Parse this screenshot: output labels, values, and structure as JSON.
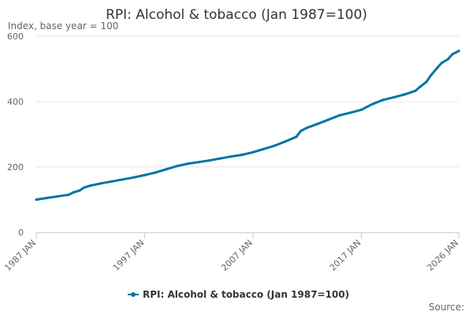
{
  "chart_data": {
    "type": "line",
    "title": "RPI: Alcohol & tobacco (Jan 1987=100)",
    "subtitle": "Index, base year = 100",
    "xlabel": "",
    "ylabel": "",
    "ylim": [
      0,
      600
    ],
    "y_ticks": [
      0,
      200,
      400,
      600
    ],
    "xlim": [
      "1987-01",
      "2026-01"
    ],
    "x_ticks": [
      "1987 JAN",
      "1997 JAN",
      "2007 JAN",
      "2017 JAN",
      "2026 JAN"
    ],
    "x_tick_years": [
      1987,
      1997,
      2007,
      2017,
      2026
    ],
    "grid": true,
    "legend": "bottom-center",
    "credit": "Source:",
    "series": [
      {
        "name": "RPI: Alcohol & tobacco (Jan 1987=100)",
        "color": "#0075a3",
        "points": [
          [
            "1987-01",
            100
          ],
          [
            "1988-01",
            105
          ],
          [
            "1989-01",
            110
          ],
          [
            "1990-01",
            115
          ],
          [
            "1990-06",
            122
          ],
          [
            "1991-01",
            128
          ],
          [
            "1991-06",
            137
          ],
          [
            "1992-01",
            143
          ],
          [
            "1993-01",
            150
          ],
          [
            "1994-01",
            156
          ],
          [
            "1995-01",
            162
          ],
          [
            "1996-01",
            168
          ],
          [
            "1997-01",
            175
          ],
          [
            "1998-01",
            183
          ],
          [
            "1999-01",
            193
          ],
          [
            "2000-01",
            203
          ],
          [
            "2001-01",
            210
          ],
          [
            "2002-01",
            215
          ],
          [
            "2003-01",
            220
          ],
          [
            "2004-01",
            226
          ],
          [
            "2005-01",
            232
          ],
          [
            "2006-01",
            237
          ],
          [
            "2007-01",
            245
          ],
          [
            "2008-01",
            255
          ],
          [
            "2009-01",
            265
          ],
          [
            "2010-01",
            278
          ],
          [
            "2011-01",
            292
          ],
          [
            "2011-06",
            310
          ],
          [
            "2012-01",
            320
          ],
          [
            "2013-01",
            332
          ],
          [
            "2014-01",
            345
          ],
          [
            "2015-01",
            358
          ],
          [
            "2016-01",
            366
          ],
          [
            "2017-01",
            375
          ],
          [
            "2018-01",
            392
          ],
          [
            "2019-01",
            405
          ],
          [
            "2020-01",
            413
          ],
          [
            "2021-01",
            422
          ],
          [
            "2022-01",
            433
          ],
          [
            "2022-06",
            445
          ],
          [
            "2023-01",
            460
          ],
          [
            "2023-06",
            480
          ],
          [
            "2024-01",
            503
          ],
          [
            "2024-06",
            518
          ],
          [
            "2025-01",
            530
          ],
          [
            "2025-06",
            545
          ],
          [
            "2026-01",
            555
          ]
        ]
      }
    ]
  }
}
